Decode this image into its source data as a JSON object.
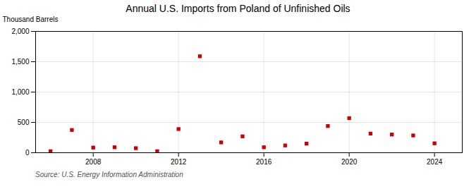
{
  "chart_data": {
    "type": "scatter",
    "title": "Annual U.S. Imports from Poland of Unfinished Oils",
    "ylabel": "Thousand Barrels",
    "source": "Source: U.S. Energy Information Administration",
    "x": [
      2006,
      2007,
      2008,
      2009,
      2010,
      2011,
      2012,
      2013,
      2014,
      2015,
      2016,
      2017,
      2018,
      2019,
      2020,
      2021,
      2022,
      2023,
      2024
    ],
    "values": [
      25,
      375,
      85,
      90,
      75,
      25,
      390,
      1590,
      170,
      270,
      90,
      120,
      150,
      440,
      570,
      315,
      300,
      285,
      155
    ],
    "color": "#cc0000",
    "marker": "square",
    "xlim": [
      2005.3,
      2025.3
    ],
    "xticks": [
      2008,
      2012,
      2016,
      2020,
      2024
    ],
    "ylim": [
      0,
      2000
    ],
    "yticks": [
      0,
      500,
      {
        "value": 1000,
        "label": "1,000"
      },
      {
        "value": 1500,
        "label": "1,500"
      },
      {
        "value": 2000,
        "label": "2,000"
      }
    ],
    "grid": true
  }
}
